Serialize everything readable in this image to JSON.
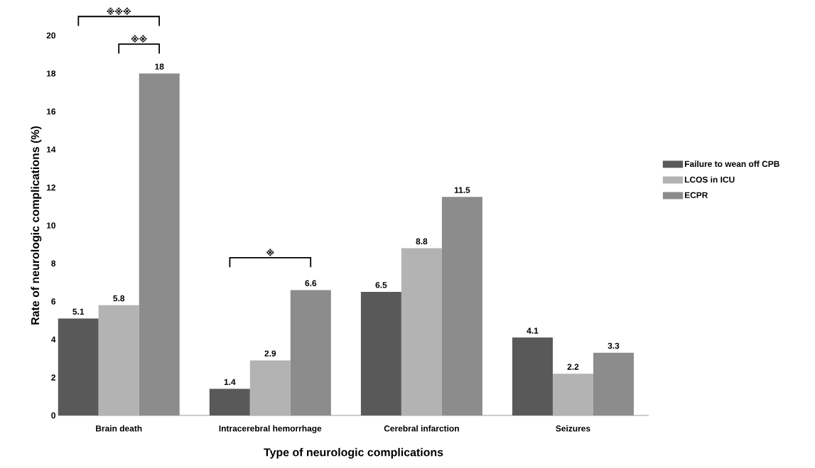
{
  "chart_data": {
    "type": "bar",
    "xlabel": "Type of neurologic complications",
    "ylabel": "Rate of neurologic complications (%)",
    "categories": [
      "Brain death",
      "Intracerebral hemorrhage",
      "Cerebral infarction",
      "Seizures"
    ],
    "series": [
      {
        "name": "Failure to wean off CPB",
        "color": "#595959",
        "values": [
          5.1,
          1.4,
          6.5,
          4.1
        ]
      },
      {
        "name": "LCOS in ICU",
        "color": "#b3b3b3",
        "values": [
          5.8,
          2.9,
          8.8,
          2.2
        ]
      },
      {
        "name": "ECPR",
        "color": "#8c8c8c",
        "values": [
          18,
          6.6,
          11.5,
          3.3
        ]
      }
    ],
    "ylim": [
      0,
      20
    ],
    "yticks": [
      0,
      2,
      4,
      6,
      8,
      10,
      12,
      14,
      16,
      18,
      20
    ],
    "data_labels": true,
    "legend": "right",
    "grid": false,
    "annotations": [
      "※※※",
      "※※",
      "※"
    ]
  }
}
